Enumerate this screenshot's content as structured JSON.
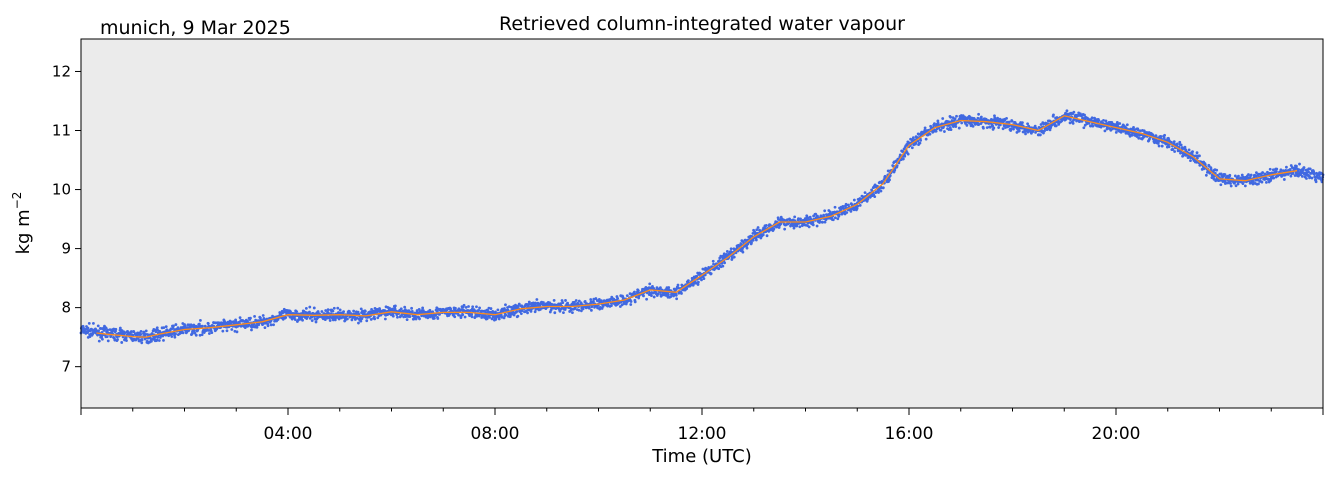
{
  "header": {
    "location_date": "munich, 9 Mar 2025"
  },
  "chart_data": {
    "type": "scatter",
    "title": "Retrieved column-integrated water vapour",
    "xlabel": "Time (UTC)",
    "ylabel_base": "kg m",
    "ylabel_exponent": "−2",
    "xlim_hours": [
      0,
      24
    ],
    "ylim": [
      6.3,
      12.55
    ],
    "x_tick_hours": [
      4,
      8,
      12,
      16,
      20
    ],
    "x_tick_labels": [
      "04:00",
      "08:00",
      "12:00",
      "16:00",
      "20:00"
    ],
    "y_ticks": [
      7,
      8,
      9,
      10,
      11,
      12
    ],
    "y_tick_labels": [
      "7",
      "8",
      "9",
      "10",
      "11",
      "12"
    ],
    "grid": false,
    "colors": {
      "background": "#ebebeb",
      "scatter": "#4169e1",
      "smoothed": "#ff8c1a"
    },
    "series": [
      {
        "kind": "scatter",
        "x_hours": [
          0.0,
          0.5,
          1.0,
          1.25,
          1.5,
          2.0,
          2.5,
          3.0,
          3.5,
          4.0,
          4.5,
          5.0,
          5.5,
          6.0,
          6.5,
          7.0,
          7.5,
          8.0,
          8.5,
          9.0,
          9.5,
          10.0,
          10.5,
          11.0,
          11.5,
          12.0,
          12.5,
          13.0,
          13.5,
          14.0,
          14.5,
          15.0,
          15.5,
          16.0,
          16.5,
          17.0,
          17.5,
          18.0,
          18.5,
          19.0,
          19.5,
          20.0,
          20.5,
          21.0,
          21.5,
          22.0,
          22.5,
          23.0,
          23.5,
          24.0
        ],
        "values": [
          7.62,
          7.56,
          7.52,
          7.5,
          7.55,
          7.63,
          7.66,
          7.71,
          7.76,
          7.88,
          7.87,
          7.88,
          7.87,
          7.94,
          7.88,
          7.92,
          7.93,
          7.88,
          7.98,
          8.03,
          8.02,
          8.06,
          8.13,
          8.3,
          8.25,
          8.55,
          8.85,
          9.2,
          9.45,
          9.45,
          9.55,
          9.75,
          10.1,
          10.75,
          11.05,
          11.18,
          11.15,
          11.1,
          11.0,
          11.25,
          11.15,
          11.05,
          10.95,
          10.8,
          10.55,
          10.18,
          10.15,
          10.25,
          10.32,
          10.2
        ]
      },
      {
        "kind": "line",
        "x_hours": [
          0.3,
          0.5,
          1.0,
          1.25,
          1.5,
          2.0,
          2.5,
          3.0,
          3.5,
          4.0,
          4.5,
          5.0,
          5.5,
          6.0,
          6.5,
          7.0,
          7.5,
          8.0,
          8.5,
          9.0,
          9.5,
          10.0,
          10.5,
          11.0,
          11.5,
          12.0,
          12.5,
          13.0,
          13.5,
          14.0,
          14.5,
          15.0,
          15.5,
          16.0,
          16.5,
          17.0,
          17.5,
          18.0,
          18.5,
          19.0,
          19.5,
          20.0,
          20.5,
          21.0,
          21.5,
          22.0,
          22.5,
          23.0,
          23.5
        ],
        "values": [
          7.57,
          7.55,
          7.51,
          7.5,
          7.55,
          7.63,
          7.66,
          7.71,
          7.76,
          7.88,
          7.87,
          7.88,
          7.86,
          7.93,
          7.88,
          7.92,
          7.92,
          7.88,
          7.98,
          8.02,
          8.02,
          8.06,
          8.13,
          8.3,
          8.26,
          8.55,
          8.85,
          9.2,
          9.45,
          9.45,
          9.55,
          9.75,
          10.1,
          10.75,
          11.05,
          11.17,
          11.15,
          11.1,
          11.0,
          11.25,
          11.15,
          11.05,
          10.95,
          10.8,
          10.55,
          10.18,
          10.15,
          10.25,
          10.32
        ]
      }
    ]
  }
}
